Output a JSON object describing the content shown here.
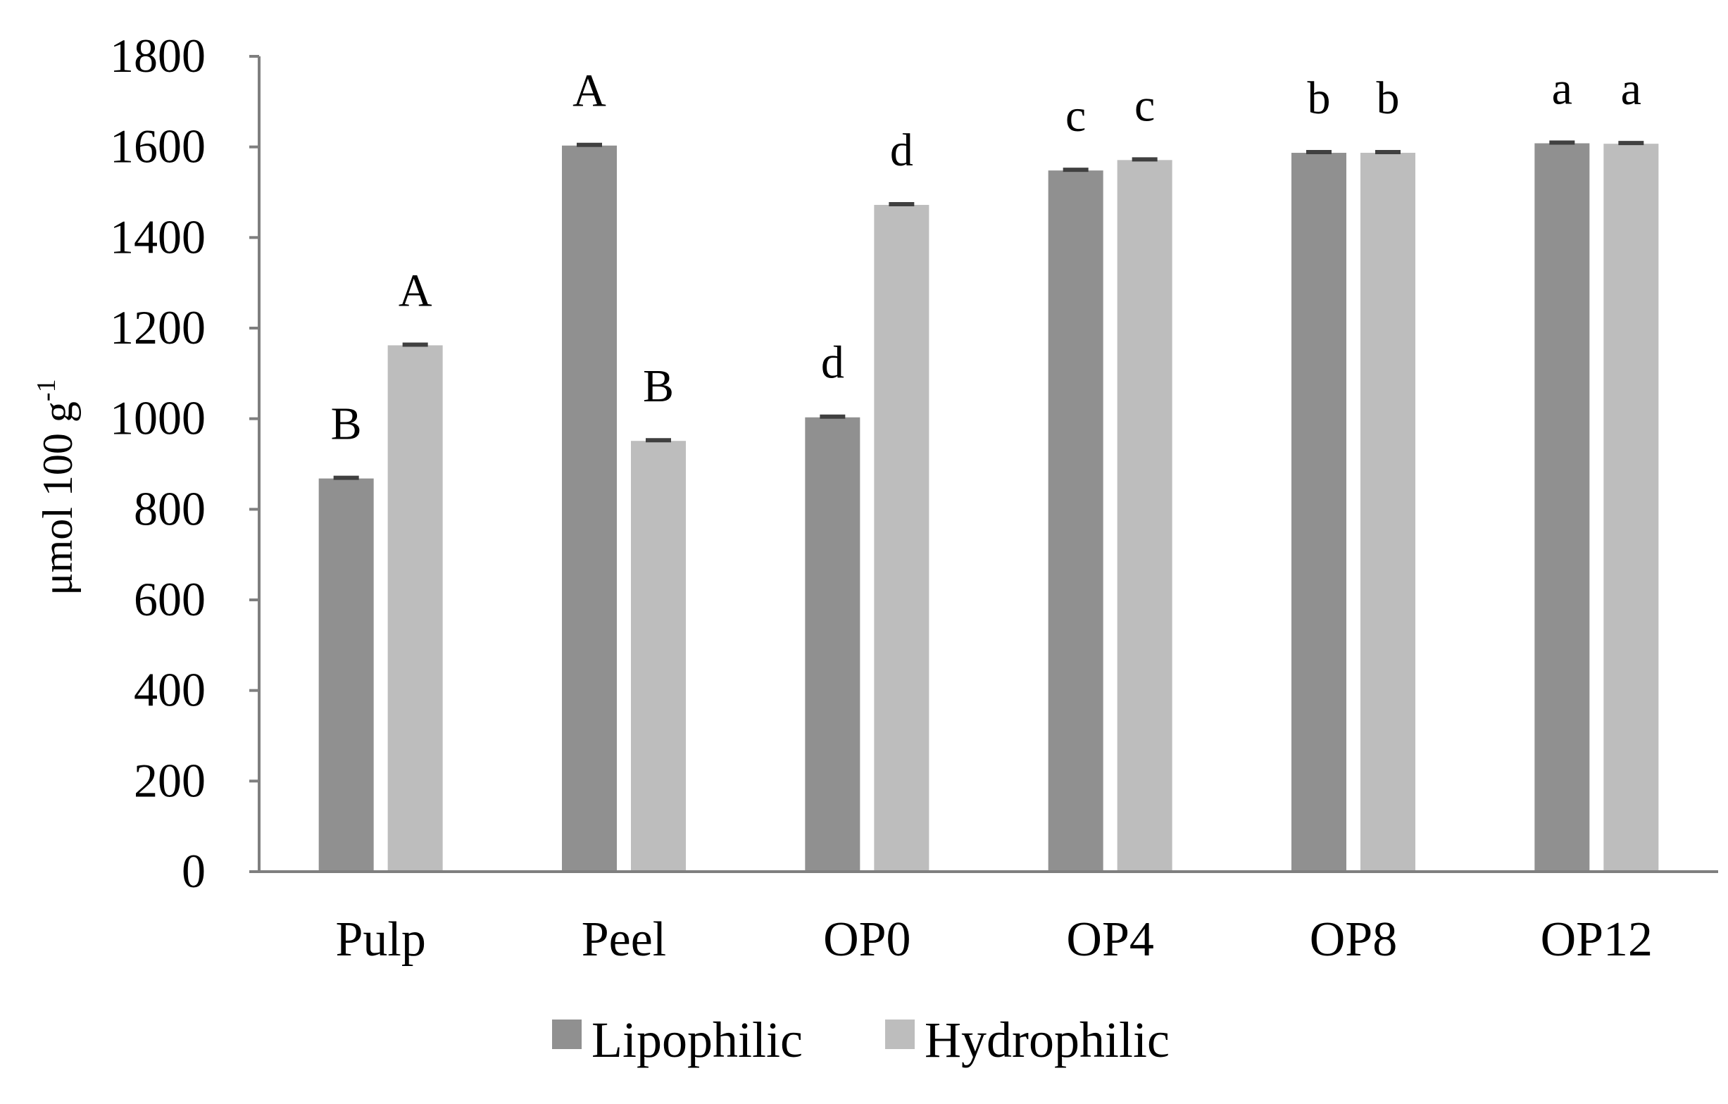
{
  "chart_data": {
    "type": "bar",
    "title": "",
    "xlabel": "",
    "ylabel": "μmol 100 g",
    "ylabel_superscript": "-1",
    "ylim": [
      0,
      1800
    ],
    "yticks": [
      0,
      200,
      400,
      600,
      800,
      1000,
      1200,
      1400,
      1600,
      1800
    ],
    "grid": false,
    "legend_position": "bottom",
    "categories": [
      "Pulp",
      "Peel",
      "OP0",
      "OP4",
      "OP8",
      "OP12"
    ],
    "series": [
      {
        "name": "Lipophilic",
        "color": "#909090",
        "values": [
          868,
          1603,
          1003,
          1548,
          1587,
          1608
        ],
        "labels": [
          "B",
          "A",
          "d",
          "c",
          "b",
          "a"
        ]
      },
      {
        "name": "Hydrophilic",
        "color": "#bdbdbd",
        "values": [
          1162,
          951,
          1472,
          1571,
          1587,
          1607
        ],
        "labels": [
          "A",
          "B",
          "d",
          "c",
          "b",
          "a"
        ]
      }
    ]
  },
  "colors": {
    "axis": "#7f7f7f",
    "error_bar": "#404040"
  }
}
